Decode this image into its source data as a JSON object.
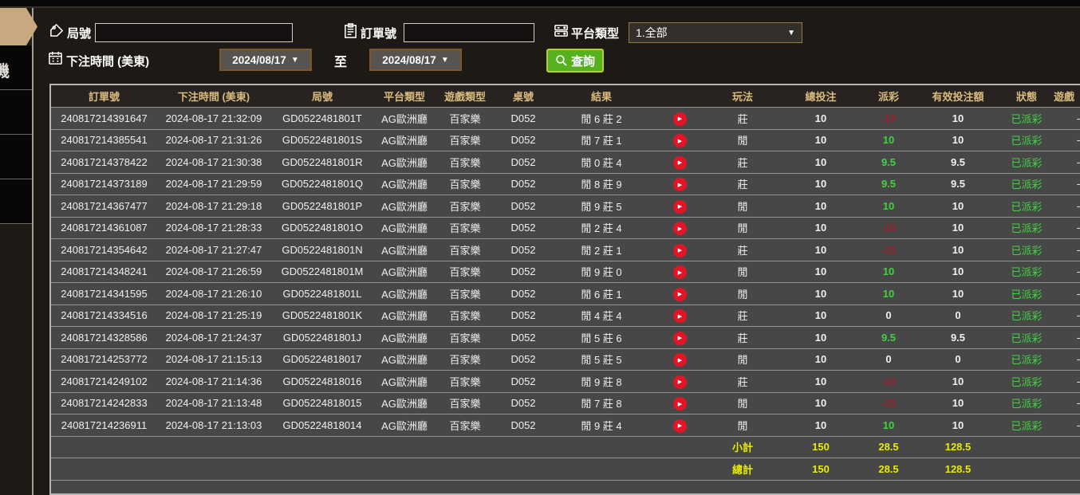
{
  "sidebar": {
    "partial_item_label": "機"
  },
  "filters": {
    "round_label": "局號",
    "order_label": "訂單號",
    "platform_label": "平台類型",
    "platform_value": "1.全部",
    "time_label": "下注時間 (美東)",
    "date_from": "2024/08/17",
    "date_to": "2024/08/17",
    "to_label": "至",
    "search_label": "查詢",
    "dropdown_arrow": "▼"
  },
  "table": {
    "headers": [
      "訂單號",
      "下注時間 (美東)",
      "局號",
      "平台類型",
      "遊戲類型",
      "桌號",
      "結果",
      "",
      "玩法",
      "總投注",
      "派彩",
      "有效投注額",
      "狀態",
      "遊戲"
    ],
    "rows": [
      {
        "order": "240817214391647",
        "time": "2024-08-17 21:32:09",
        "round": "GD0522481801T",
        "platform": "AG歐洲廳",
        "game": "百家樂",
        "table_no": "D052",
        "result": "閒 6 莊 2",
        "play": "莊",
        "bet": "10",
        "payout": "-10",
        "payout_class": "neg",
        "valid": "10",
        "status": "已派彩",
        "game_id": "-"
      },
      {
        "order": "240817214385541",
        "time": "2024-08-17 21:31:26",
        "round": "GD0522481801S",
        "platform": "AG歐洲廳",
        "game": "百家樂",
        "table_no": "D052",
        "result": "閒 7 莊 1",
        "play": "閒",
        "bet": "10",
        "payout": "10",
        "payout_class": "pos",
        "valid": "10",
        "status": "已派彩",
        "game_id": "-"
      },
      {
        "order": "240817214378422",
        "time": "2024-08-17 21:30:38",
        "round": "GD0522481801R",
        "platform": "AG歐洲廳",
        "game": "百家樂",
        "table_no": "D052",
        "result": "閒 0 莊 4",
        "play": "莊",
        "bet": "10",
        "payout": "9.5",
        "payout_class": "pos",
        "valid": "9.5",
        "status": "已派彩",
        "game_id": "-"
      },
      {
        "order": "240817214373189",
        "time": "2024-08-17 21:29:59",
        "round": "GD0522481801Q",
        "platform": "AG歐洲廳",
        "game": "百家樂",
        "table_no": "D052",
        "result": "閒 8 莊 9",
        "play": "莊",
        "bet": "10",
        "payout": "9.5",
        "payout_class": "pos",
        "valid": "9.5",
        "status": "已派彩",
        "game_id": "-"
      },
      {
        "order": "240817214367477",
        "time": "2024-08-17 21:29:18",
        "round": "GD0522481801P",
        "platform": "AG歐洲廳",
        "game": "百家樂",
        "table_no": "D052",
        "result": "閒 9 莊 5",
        "play": "閒",
        "bet": "10",
        "payout": "10",
        "payout_class": "pos",
        "valid": "10",
        "status": "已派彩",
        "game_id": "-"
      },
      {
        "order": "240817214361087",
        "time": "2024-08-17 21:28:33",
        "round": "GD0522481801O",
        "platform": "AG歐洲廳",
        "game": "百家樂",
        "table_no": "D052",
        "result": "閒 2 莊 4",
        "play": "閒",
        "bet": "10",
        "payout": "-10",
        "payout_class": "neg",
        "valid": "10",
        "status": "已派彩",
        "game_id": "-"
      },
      {
        "order": "240817214354642",
        "time": "2024-08-17 21:27:47",
        "round": "GD0522481801N",
        "platform": "AG歐洲廳",
        "game": "百家樂",
        "table_no": "D052",
        "result": "閒 2 莊 1",
        "play": "莊",
        "bet": "10",
        "payout": "-10",
        "payout_class": "neg",
        "valid": "10",
        "status": "已派彩",
        "game_id": "-"
      },
      {
        "order": "240817214348241",
        "time": "2024-08-17 21:26:59",
        "round": "GD0522481801M",
        "platform": "AG歐洲廳",
        "game": "百家樂",
        "table_no": "D052",
        "result": "閒 9 莊 0",
        "play": "閒",
        "bet": "10",
        "payout": "10",
        "payout_class": "pos",
        "valid": "10",
        "status": "已派彩",
        "game_id": "-"
      },
      {
        "order": "240817214341595",
        "time": "2024-08-17 21:26:10",
        "round": "GD0522481801L",
        "platform": "AG歐洲廳",
        "game": "百家樂",
        "table_no": "D052",
        "result": "閒 6 莊 1",
        "play": "閒",
        "bet": "10",
        "payout": "10",
        "payout_class": "pos",
        "valid": "10",
        "status": "已派彩",
        "game_id": "-"
      },
      {
        "order": "240817214334516",
        "time": "2024-08-17 21:25:19",
        "round": "GD0522481801K",
        "platform": "AG歐洲廳",
        "game": "百家樂",
        "table_no": "D052",
        "result": "閒 4 莊 4",
        "play": "莊",
        "bet": "10",
        "payout": "0",
        "payout_class": "zero",
        "valid": "0",
        "status": "已派彩",
        "game_id": "-"
      },
      {
        "order": "240817214328586",
        "time": "2024-08-17 21:24:37",
        "round": "GD0522481801J",
        "platform": "AG歐洲廳",
        "game": "百家樂",
        "table_no": "D052",
        "result": "閒 5 莊 6",
        "play": "莊",
        "bet": "10",
        "payout": "9.5",
        "payout_class": "pos",
        "valid": "9.5",
        "status": "已派彩",
        "game_id": "-"
      },
      {
        "order": "240817214253772",
        "time": "2024-08-17 21:15:13",
        "round": "GD05224818017",
        "platform": "AG歐洲廳",
        "game": "百家樂",
        "table_no": "D052",
        "result": "閒 5 莊 5",
        "play": "閒",
        "bet": "10",
        "payout": "0",
        "payout_class": "zero",
        "valid": "0",
        "status": "已派彩",
        "game_id": "-"
      },
      {
        "order": "240817214249102",
        "time": "2024-08-17 21:14:36",
        "round": "GD05224818016",
        "platform": "AG歐洲廳",
        "game": "百家樂",
        "table_no": "D052",
        "result": "閒 9 莊 8",
        "play": "莊",
        "bet": "10",
        "payout": "-10",
        "payout_class": "neg",
        "valid": "10",
        "status": "已派彩",
        "game_id": "-"
      },
      {
        "order": "240817214242833",
        "time": "2024-08-17 21:13:48",
        "round": "GD05224818015",
        "platform": "AG歐洲廳",
        "game": "百家樂",
        "table_no": "D052",
        "result": "閒 7 莊 8",
        "play": "閒",
        "bet": "10",
        "payout": "-10",
        "payout_class": "neg",
        "valid": "10",
        "status": "已派彩",
        "game_id": "-"
      },
      {
        "order": "240817214236911",
        "time": "2024-08-17 21:13:03",
        "round": "GD05224818014",
        "platform": "AG歐洲廳",
        "game": "百家樂",
        "table_no": "D052",
        "result": "閒 9 莊 4",
        "play": "閒",
        "bet": "10",
        "payout": "10",
        "payout_class": "pos",
        "valid": "10",
        "status": "已派彩",
        "game_id": "-"
      }
    ],
    "subtotal": {
      "label": "小計",
      "bet": "150",
      "payout": "28.5",
      "valid": "128.5"
    },
    "total": {
      "label": "總計",
      "bet": "150",
      "payout": "28.5",
      "valid": "128.5"
    }
  },
  "colors": {
    "header_gold": "#d9bb7d",
    "positive_green": "#3fd53f",
    "negative_red": "#9b2030",
    "summary_yellow": "#e9ec00",
    "button_green": "#55b11e",
    "sidebar_active": "#c8a87e",
    "play_icon_red": "#e31426"
  }
}
